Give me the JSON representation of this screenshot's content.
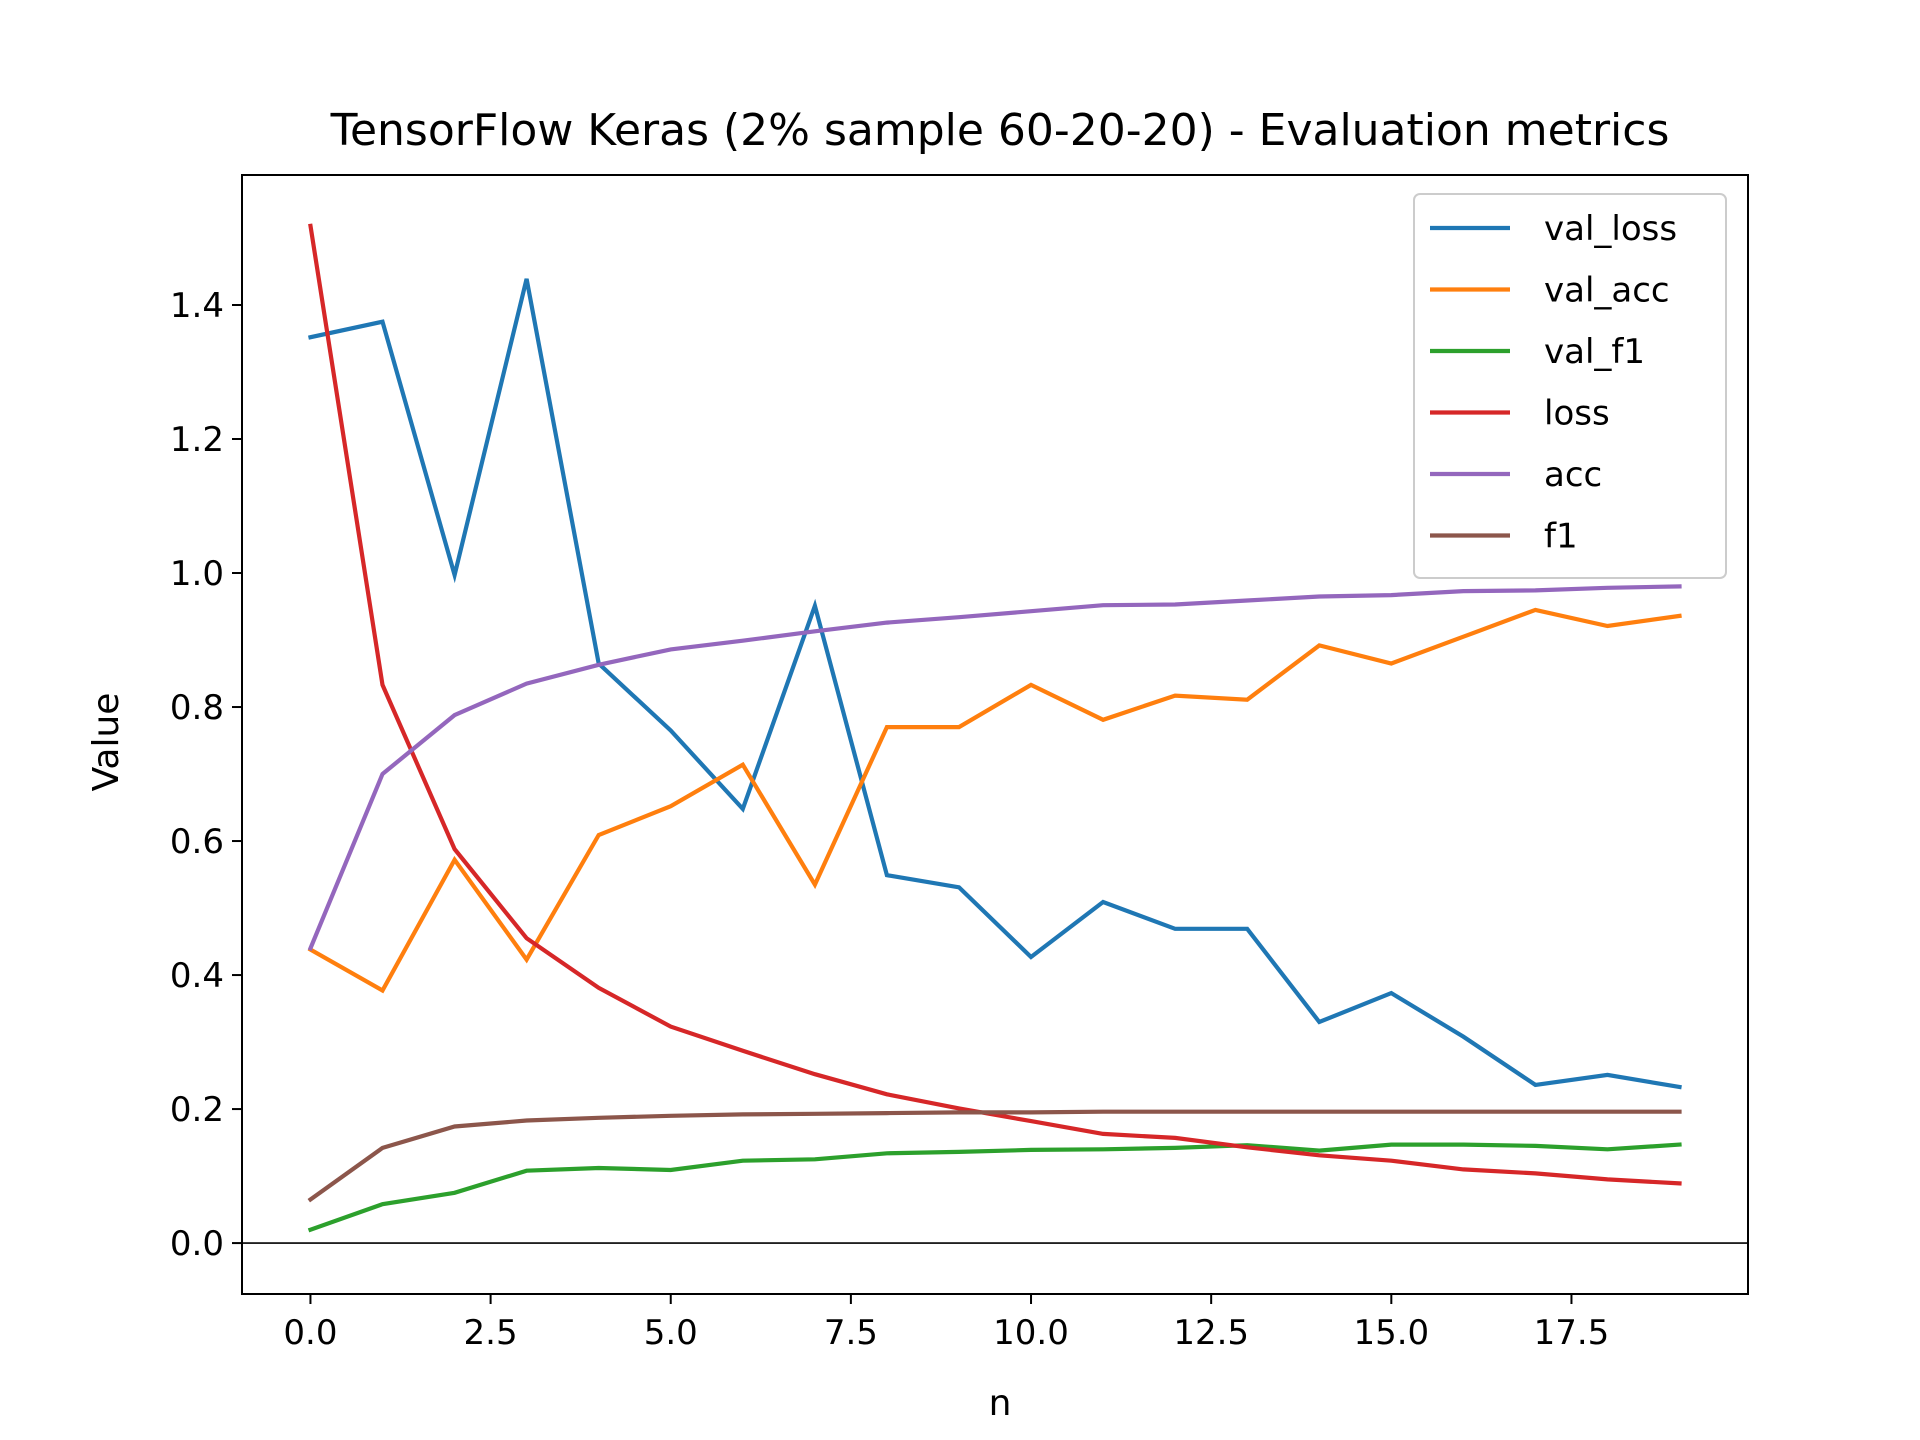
{
  "chart_data": {
    "type": "line",
    "title": "TensorFlow Keras (2% sample 60-20-20) - Evaluation metrics",
    "xlabel": "n",
    "ylabel": "Value",
    "xlim": [
      -0.95,
      19.95
    ],
    "ylim": [
      -0.076,
      1.594
    ],
    "xticks": [
      0.0,
      2.5,
      5.0,
      7.5,
      10.0,
      12.5,
      15.0,
      17.5
    ],
    "xtick_labels": [
      "0.0",
      "2.5",
      "5.0",
      "7.5",
      "10.0",
      "12.5",
      "15.0",
      "17.5"
    ],
    "yticks": [
      0.0,
      0.2,
      0.4,
      0.6,
      0.8,
      1.0,
      1.2,
      1.4
    ],
    "ytick_labels": [
      "0.0",
      "0.2",
      "0.4",
      "0.6",
      "0.8",
      "1.0",
      "1.2",
      "1.4"
    ],
    "grid": false,
    "zero_line": true,
    "legend_position": "top-right",
    "x": [
      0,
      1,
      2,
      3,
      4,
      5,
      6,
      7,
      8,
      9,
      10,
      11,
      12,
      13,
      14,
      15,
      16,
      17,
      18,
      19
    ],
    "series": [
      {
        "name": "val_loss",
        "color": "#1f77b4",
        "values": [
          1.352,
          1.375,
          0.997,
          1.439,
          0.865,
          0.765,
          0.648,
          0.951,
          0.549,
          0.531,
          0.427,
          0.509,
          0.469,
          0.469,
          0.33,
          0.373,
          0.308,
          0.236,
          0.251,
          0.233
        ]
      },
      {
        "name": "val_acc",
        "color": "#ff7f0e",
        "values": [
          0.438,
          0.377,
          0.572,
          0.423,
          0.609,
          0.652,
          0.714,
          0.535,
          0.77,
          0.77,
          0.833,
          0.781,
          0.817,
          0.811,
          0.892,
          0.865,
          0.905,
          0.945,
          0.921,
          0.936
        ]
      },
      {
        "name": "val_f1",
        "color": "#2ca02c",
        "values": [
          0.02,
          0.058,
          0.075,
          0.108,
          0.112,
          0.109,
          0.123,
          0.125,
          0.134,
          0.136,
          0.139,
          0.14,
          0.142,
          0.146,
          0.138,
          0.147,
          0.147,
          0.145,
          0.14,
          0.147
        ]
      },
      {
        "name": "loss",
        "color": "#d62728",
        "values": [
          1.518,
          0.833,
          0.588,
          0.455,
          0.381,
          0.323,
          0.287,
          0.252,
          0.222,
          0.201,
          0.182,
          0.163,
          0.157,
          0.143,
          0.131,
          0.123,
          0.11,
          0.104,
          0.095,
          0.089
        ]
      },
      {
        "name": "acc",
        "color": "#9467bd",
        "values": [
          0.44,
          0.7,
          0.788,
          0.835,
          0.863,
          0.886,
          0.899,
          0.913,
          0.926,
          0.934,
          0.943,
          0.952,
          0.953,
          0.959,
          0.965,
          0.967,
          0.973,
          0.974,
          0.978,
          0.98
        ]
      },
      {
        "name": "f1",
        "color": "#8c564b",
        "values": [
          0.065,
          0.142,
          0.174,
          0.183,
          0.187,
          0.19,
          0.192,
          0.193,
          0.194,
          0.195,
          0.195,
          0.196,
          0.196,
          0.196,
          0.196,
          0.196,
          0.196,
          0.196,
          0.196,
          0.196
        ]
      }
    ]
  }
}
